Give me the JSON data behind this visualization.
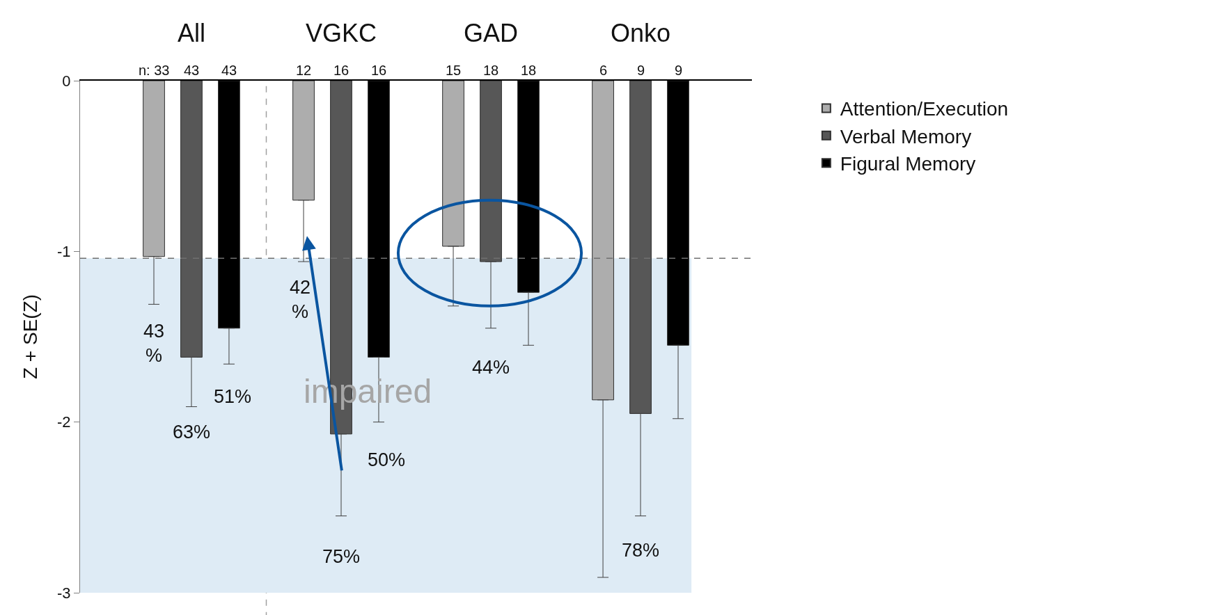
{
  "chart_data": {
    "type": "bar",
    "ylabel": "Z + SE(Z)",
    "categories": [
      "All",
      "VGKC",
      "GAD",
      "Onko"
    ],
    "series": [
      {
        "name": "Attention/Execution",
        "color": "#adadad",
        "values": [
          -1.03,
          -0.7,
          -0.97,
          -1.87
        ],
        "errors": [
          [
            -1.31,
            -1.03
          ],
          [
            -1.06,
            -0.7
          ],
          [
            -1.32,
            -0.97
          ],
          [
            -2.91,
            -1.87
          ]
        ]
      },
      {
        "name": "Verbal Memory",
        "color": "#575757",
        "values": [
          -1.62,
          -2.07,
          -1.06,
          -1.95
        ],
        "errors": [
          [
            -1.91,
            -1.62
          ],
          [
            -2.55,
            -2.07
          ],
          [
            -1.45,
            -1.06
          ],
          [
            -2.55,
            -1.95
          ]
        ]
      },
      {
        "name": "Figural Memory",
        "color": "#000000",
        "values": [
          -1.45,
          -1.62,
          -1.24,
          -1.55
        ],
        "errors": [
          [
            -1.66,
            -1.45
          ],
          [
            -2.0,
            -1.62
          ],
          [
            -1.55,
            -1.24
          ],
          [
            -1.98,
            -1.55
          ]
        ]
      }
    ],
    "ylim": [
      -3,
      0
    ],
    "yticks": [
      -3,
      -2,
      -1,
      0
    ],
    "grid": false,
    "legend": "top right",
    "ref_lines": [
      {
        "axis": "y",
        "value": -1.04,
        "line_style": "dashed",
        "color": "#707070"
      }
    ],
    "bands": [
      {
        "axis": "y",
        "from": -1.04,
        "to": -3,
        "color": "#deebf5"
      }
    ],
    "annotations": [
      {
        "text": "n: 33",
        "x": "All",
        "y": 0
      },
      {
        "text": "43",
        "x": "All",
        "y": 0
      },
      {
        "text": "43",
        "x": "All",
        "y": 0
      },
      {
        "text": "12",
        "x": "VGKC",
        "y": 0
      },
      {
        "text": "16",
        "x": "VGKC",
        "y": 0
      },
      {
        "text": "16",
        "x": "VGKC",
        "y": 0
      },
      {
        "text": "15",
        "x": "GAD",
        "y": 0
      },
      {
        "text": "18",
        "x": "GAD",
        "y": 0
      },
      {
        "text": "18",
        "x": "GAD",
        "y": 0
      },
      {
        "text": "6",
        "x": "Onko",
        "y": 0
      },
      {
        "text": "9",
        "x": "Onko",
        "y": 0
      },
      {
        "text": "9",
        "x": "Onko",
        "y": 0
      },
      "43\n%",
      "63%",
      "51%",
      "42\n%",
      "75%",
      "50%",
      "44%",
      "78%",
      "impaired"
    ]
  }
}
